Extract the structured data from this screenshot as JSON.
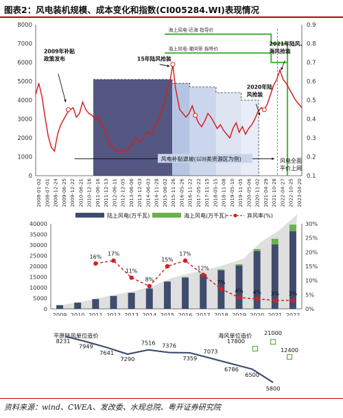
{
  "title": "图表2：风电装机规模、成本变化和指数(CI005284.WI)表现情况",
  "footer": "资料来源：wind、CWEA、发改委、水规总院、粤开证券研究院",
  "colors": {
    "index_line": "#d42020",
    "main_band": "#4a4e7a",
    "band_lighter": "#c6d3ea",
    "tariff_line": "#55b84a",
    "bar_onshore": "#3f4c6e",
    "bar_offshore": "#6ab04c",
    "curtail_line": "#d42020",
    "area_fill": "#d9d9d9",
    "cost_line": "#3f4c6e",
    "offshore_cost": "#6ab04c"
  },
  "chart_data": [
    {
      "type": "line",
      "name": "top",
      "x_ticks": [
        "2008-01-02",
        "2008-07-01",
        "2008-12-24",
        "2009-06-25",
        "2009-12-22",
        "2010-06-21",
        "2010-12-16",
        "2011-06-16",
        "2011-12-13",
        "2012-06-11",
        "2012-12-05",
        "2013-06-06",
        "2013-12-03",
        "2014-06-03",
        "2014-11-28",
        "2015-06-02",
        "2015-11-26",
        "2016-05-26",
        "2016-11-22",
        "2017-05-22",
        "2017-11-15",
        "2018-05-15",
        "2018-11-08",
        "2019-05-10",
        "2019-11-05",
        "2020-05-06",
        "2020-11-02",
        "2021-04-29",
        "2021-10-28",
        "2022-04-27",
        "2022-10-25",
        "2023-04-20"
      ],
      "y_left_ticks": [
        "0",
        "1000",
        "2000",
        "3000",
        "4000",
        "5000",
        "6000",
        "7000",
        "8000"
      ],
      "y_left_lim": [
        0,
        8000
      ],
      "y_right_ticks": [
        "0.1",
        "0.2",
        "0.3",
        "0.4",
        "0.5",
        "0.6",
        "0.7",
        "0.8",
        "0.9"
      ],
      "y_right_lim": [
        0.1,
        0.9
      ],
      "index_series": [
        [
          0,
          4300
        ],
        [
          0.5,
          4900
        ],
        [
          1,
          4200
        ],
        [
          1.5,
          3100
        ],
        [
          2,
          2100
        ],
        [
          2.5,
          1500
        ],
        [
          3,
          1300
        ],
        [
          3.5,
          2200
        ],
        [
          4,
          2700
        ],
        [
          4.5,
          3000
        ],
        [
          5,
          3300
        ],
        [
          5.5,
          3500
        ],
        [
          6,
          3600
        ],
        [
          6.5,
          3100
        ],
        [
          7,
          3300
        ],
        [
          7.5,
          3900
        ],
        [
          8,
          3500
        ],
        [
          8.5,
          3300
        ],
        [
          9,
          3200
        ],
        [
          9.5,
          3000
        ],
        [
          10,
          3100
        ],
        [
          10.5,
          2700
        ],
        [
          11,
          2400
        ],
        [
          11.5,
          2000
        ],
        [
          12,
          1600
        ],
        [
          12.5,
          1400
        ],
        [
          13,
          1300
        ],
        [
          13.5,
          1200
        ],
        [
          14,
          1400
        ],
        [
          14.5,
          1300
        ],
        [
          15,
          1500
        ],
        [
          15.5,
          1700
        ],
        [
          16,
          2000
        ],
        [
          16.5,
          1800
        ],
        [
          17,
          1900
        ],
        [
          17.5,
          2200
        ],
        [
          18,
          2300
        ],
        [
          18.5,
          2200
        ],
        [
          19,
          2600
        ],
        [
          19.5,
          2900
        ],
        [
          20,
          3300
        ],
        [
          20.5,
          3800
        ],
        [
          21,
          4500
        ],
        [
          21.5,
          5100
        ],
        [
          21.9,
          5900
        ],
        [
          22.3,
          4700
        ],
        [
          22.7,
          4000
        ],
        [
          23,
          3500
        ],
        [
          23.5,
          3300
        ],
        [
          24,
          3100
        ],
        [
          24.5,
          3300
        ],
        [
          25,
          3700
        ],
        [
          25.5,
          3200
        ],
        [
          26,
          2800
        ],
        [
          26.5,
          2600
        ],
        [
          27,
          2900
        ],
        [
          27.5,
          3300
        ],
        [
          28,
          3100
        ],
        [
          28.5,
          2800
        ],
        [
          29,
          2500
        ],
        [
          29.5,
          2700
        ],
        [
          30,
          2400
        ],
        [
          30.5,
          2200
        ],
        [
          31,
          2000
        ],
        [
          31.5,
          2500
        ],
        [
          32,
          2800
        ],
        [
          32.5,
          2300
        ],
        [
          33,
          2600
        ],
        [
          33.5,
          2200
        ],
        [
          34,
          2500
        ],
        [
          34.5,
          2700
        ],
        [
          35,
          3000
        ],
        [
          35.5,
          3400
        ],
        [
          36,
          3600
        ],
        [
          36.5,
          3500
        ],
        [
          37,
          3800
        ],
        [
          37.5,
          4300
        ],
        [
          38,
          4800
        ],
        [
          38.5,
          5100
        ],
        [
          39,
          5600
        ],
        [
          39.5,
          5100
        ],
        [
          40,
          4900
        ],
        [
          40.5,
          4600
        ],
        [
          41,
          4300
        ],
        [
          41.5,
          4000
        ],
        [
          42,
          3800
        ],
        [
          42.5,
          3600
        ]
      ],
      "x_max": 42.5,
      "tariff_labels": [
        "海上风电-近海 指导价",
        "海上风电-潮间带 指导价"
      ],
      "annotations": [
        "2009年补贴政策发布",
        "15年陆风抢装",
        "2020年陆风抢装",
        "2021年陆风、海风抢装",
        "风电补贴退坡(以III类资源区为例)",
        "风电全面平价上网"
      ]
    },
    {
      "type": "bar",
      "name": "middle",
      "categories": [
        "2009",
        "2010",
        "2011",
        "2012",
        "2013",
        "2014",
        "2015",
        "2016",
        "2017",
        "2018",
        "2019",
        "2020",
        "2021",
        "2022"
      ],
      "legend": [
        "陆上风电(万千瓦)",
        "海上风电(万千瓦)",
        "弃风率(%)"
      ],
      "y_left_ticks": [
        "0",
        "5000",
        "10000",
        "15000",
        "20000",
        "25000",
        "30000",
        "35000",
        "40000"
      ],
      "y_left_lim": [
        0,
        40000
      ],
      "y_right_ticks": [
        "0%",
        "5%",
        "10%",
        "15%",
        "20%",
        "25%",
        "30%"
      ],
      "y_right_lim": [
        0,
        30
      ],
      "series": [
        {
          "name": "陆上风电(万千瓦)",
          "values": [
            1760,
            2960,
            4620,
            6080,
            7550,
            9580,
            12830,
            14750,
            16180,
            18120,
            20390,
            27190,
            30300,
            36550
          ]
        },
        {
          "name": "海上风电(万千瓦)",
          "values": [
            0,
            10,
            30,
            40,
            40,
            70,
            100,
            160,
            280,
            440,
            590,
            900,
            2640,
            3050
          ]
        },
        {
          "name": "弃风率(%)",
          "values": [
            null,
            null,
            16,
            17,
            11,
            8,
            15,
            17,
            12,
            7,
            4,
            3.5,
            3,
            3
          ]
        }
      ],
      "rate_labels": [
        "",
        "",
        "16%",
        "17%",
        "11%",
        "8%",
        "15%",
        "17%",
        "12%",
        "7%",
        "4%",
        "4%",
        "3%",
        "3%"
      ],
      "area_total": [
        1760,
        2970,
        4650,
        6120,
        7590,
        9650,
        12930,
        14910,
        16460,
        18560,
        20980,
        28090,
        32940,
        39600
      ]
    },
    {
      "type": "line",
      "name": "bottom",
      "onshore_title": "平原陆风单位造价",
      "offshore_title": "海风单位造价",
      "onshore_values": [
        8231,
        7949,
        7641,
        7290,
        7516,
        7376,
        7359,
        7073,
        6786,
        6500,
        5800
      ],
      "offshore_values": [
        17800,
        21000,
        12400
      ]
    }
  ]
}
